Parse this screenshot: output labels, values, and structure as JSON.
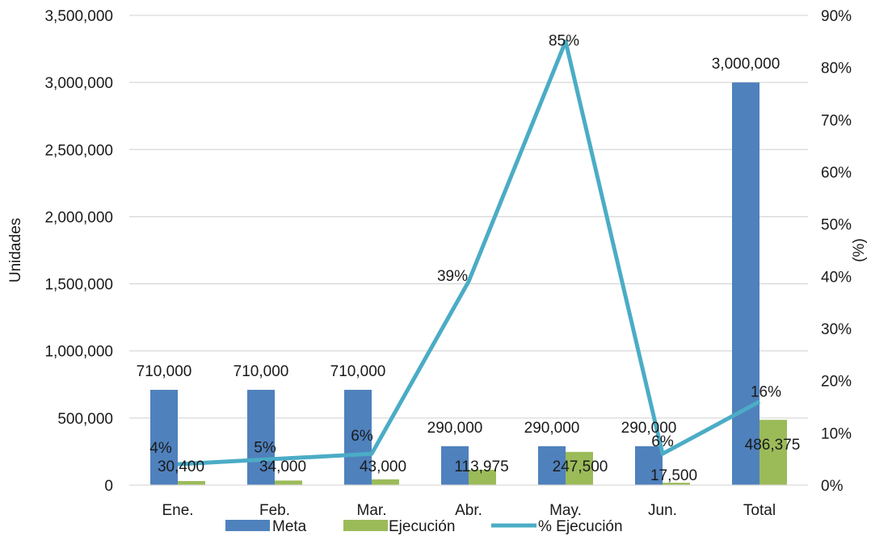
{
  "chart_data": {
    "type": "bar",
    "categories": [
      "Ene.",
      "Feb.",
      "Mar.",
      "Abr.",
      "May.",
      "Jun.",
      "Total"
    ],
    "series": [
      {
        "name": "Meta",
        "type": "bar",
        "axis": "left",
        "color": "#4f81bd",
        "values": [
          710000,
          710000,
          710000,
          290000,
          290000,
          290000,
          3000000
        ],
        "labels": [
          "710,000",
          "710,000",
          "710,000",
          "290,000",
          "290,000",
          "290,000",
          "3,000,000"
        ]
      },
      {
        "name": "Ejecución",
        "type": "bar",
        "axis": "left",
        "color": "#9bbb59",
        "values": [
          30400,
          34000,
          43000,
          113975,
          247500,
          17500,
          486375
        ],
        "labels": [
          "30,400",
          "34,000",
          "43,000",
          "113,975",
          "247,500",
          "17,500",
          "486,375"
        ]
      },
      {
        "name": "% Ejecución",
        "type": "line",
        "axis": "right",
        "color": "#4bacc6",
        "values": [
          4,
          5,
          6,
          39,
          85,
          6,
          16
        ],
        "labels": [
          "4%",
          "5%",
          "6%",
          "39%",
          "85%",
          "6%",
          "16%"
        ]
      }
    ],
    "ylabel": "Unidades",
    "y2label": "(%)",
    "ylim": [
      0,
      3500000
    ],
    "y2lim": [
      0,
      90
    ],
    "yticks": [
      "0",
      "500,000",
      "1,000,000",
      "1,500,000",
      "2,000,000",
      "2,500,000",
      "3,000,000",
      "3,500,000"
    ],
    "y2ticks": [
      "0%",
      "10%",
      "20%",
      "30%",
      "40%",
      "50%",
      "60%",
      "70%",
      "80%",
      "90%"
    ],
    "grid": true,
    "legend_position": "bottom",
    "gridline_color": "#d9d9d9"
  }
}
